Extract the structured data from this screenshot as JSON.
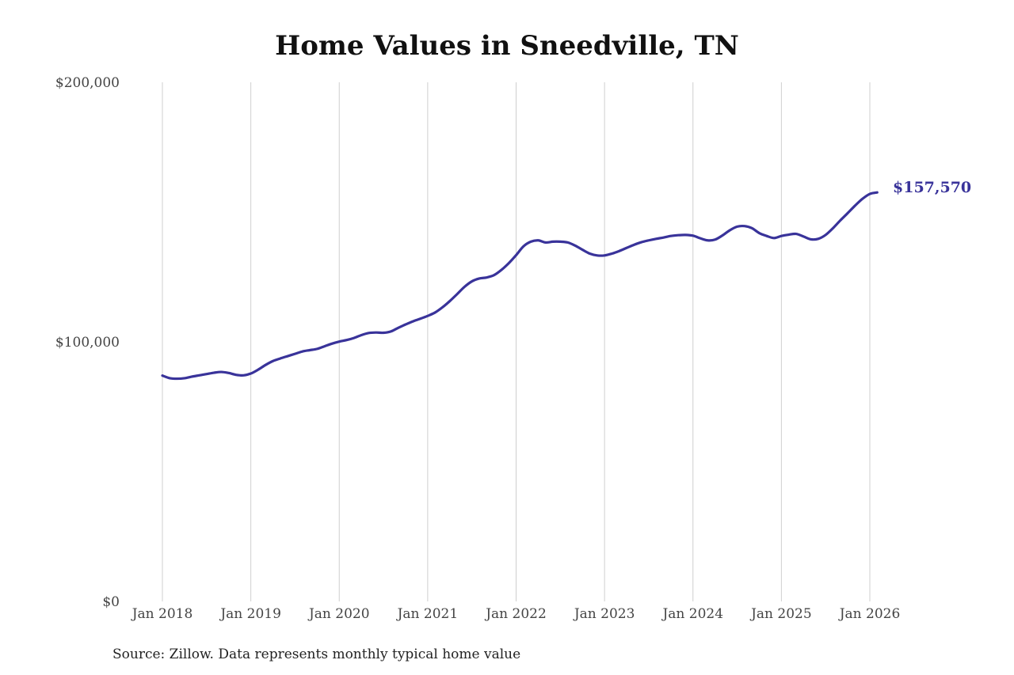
{
  "colors": {
    "line": "#39339a",
    "grid": "#cfcfcf",
    "text": "#444444",
    "title": "#111111"
  },
  "chart_data": {
    "type": "line",
    "title": "Home Values in Sneedville, TN",
    "xlabel": "",
    "ylabel": "",
    "ylim": [
      0,
      200000
    ],
    "xlim": [
      "2018-01",
      "2026-02"
    ],
    "grid": {
      "vertical": true,
      "horizontal": false
    },
    "y_ticks": [
      {
        "value": 0,
        "label": "$0"
      },
      {
        "value": 100000,
        "label": "$100,000"
      },
      {
        "value": 200000,
        "label": "$200,000"
      }
    ],
    "x_ticks": [
      {
        "value": "2018-01",
        "label": "Jan 2018"
      },
      {
        "value": "2019-01",
        "label": "Jan 2019"
      },
      {
        "value": "2020-01",
        "label": "Jan 2020"
      },
      {
        "value": "2021-01",
        "label": "Jan 2021"
      },
      {
        "value": "2022-01",
        "label": "Jan 2022"
      },
      {
        "value": "2023-01",
        "label": "Jan 2023"
      },
      {
        "value": "2024-01",
        "label": "Jan 2024"
      },
      {
        "value": "2025-01",
        "label": "Jan 2025"
      },
      {
        "value": "2026-01",
        "label": "Jan 2026"
      }
    ],
    "end_label": "$157,570",
    "source": "Source: Zillow. Data represents monthly typical home value",
    "series": [
      {
        "x": [
          "2018-01",
          "2018-02",
          "2018-03",
          "2018-04",
          "2018-05",
          "2018-06",
          "2018-07",
          "2018-08",
          "2018-09",
          "2018-10",
          "2018-11",
          "2018-12",
          "2019-01",
          "2019-02",
          "2019-03",
          "2019-04",
          "2019-05",
          "2019-06",
          "2019-07",
          "2019-08",
          "2019-09",
          "2019-10",
          "2019-11",
          "2019-12",
          "2020-01",
          "2020-02",
          "2020-03",
          "2020-04",
          "2020-05",
          "2020-06",
          "2020-07",
          "2020-08",
          "2020-09",
          "2020-10",
          "2020-11",
          "2020-12",
          "2021-01",
          "2021-02",
          "2021-03",
          "2021-04",
          "2021-05",
          "2021-06",
          "2021-07",
          "2021-08",
          "2021-09",
          "2021-10",
          "2021-11",
          "2021-12",
          "2022-01",
          "2022-02",
          "2022-03",
          "2022-04",
          "2022-05",
          "2022-06",
          "2022-07",
          "2022-08",
          "2022-09",
          "2022-10",
          "2022-11",
          "2022-12",
          "2023-01",
          "2023-02",
          "2023-03",
          "2023-04",
          "2023-05",
          "2023-06",
          "2023-07",
          "2023-08",
          "2023-09",
          "2023-10",
          "2023-11",
          "2023-12",
          "2024-01",
          "2024-02",
          "2024-03",
          "2024-04",
          "2024-05",
          "2024-06",
          "2024-07",
          "2024-08",
          "2024-09",
          "2024-10",
          "2024-11",
          "2024-12",
          "2025-01",
          "2025-02",
          "2025-03",
          "2025-04",
          "2025-05",
          "2025-06",
          "2025-07",
          "2025-08",
          "2025-09",
          "2025-10",
          "2025-11",
          "2025-12",
          "2026-01",
          "2026-02"
        ],
        "values": [
          87000,
          86000,
          85800,
          86000,
          86600,
          87100,
          87600,
          88100,
          88400,
          88000,
          87300,
          87100,
          87800,
          89300,
          91100,
          92600,
          93600,
          94500,
          95400,
          96300,
          96800,
          97300,
          98300,
          99300,
          100100,
          100700,
          101500,
          102600,
          103400,
          103600,
          103500,
          104000,
          105400,
          106700,
          107900,
          108900,
          110000,
          111300,
          113300,
          115700,
          118400,
          121200,
          123300,
          124400,
          124800,
          125700,
          127700,
          130300,
          133400,
          136800,
          138600,
          139100,
          138300,
          138600,
          138600,
          138300,
          137100,
          135500,
          134000,
          133300,
          133300,
          134000,
          135000,
          136200,
          137400,
          138400,
          139100,
          139700,
          140200,
          140800,
          141100,
          141200,
          140900,
          139900,
          139100,
          139400,
          141000,
          143000,
          144400,
          144600,
          143800,
          141900,
          140800,
          140000,
          140800,
          141300,
          141600,
          140600,
          139500,
          139700,
          141200,
          143800,
          146800,
          149600,
          152500,
          155100,
          157000,
          157570
        ]
      }
    ]
  }
}
